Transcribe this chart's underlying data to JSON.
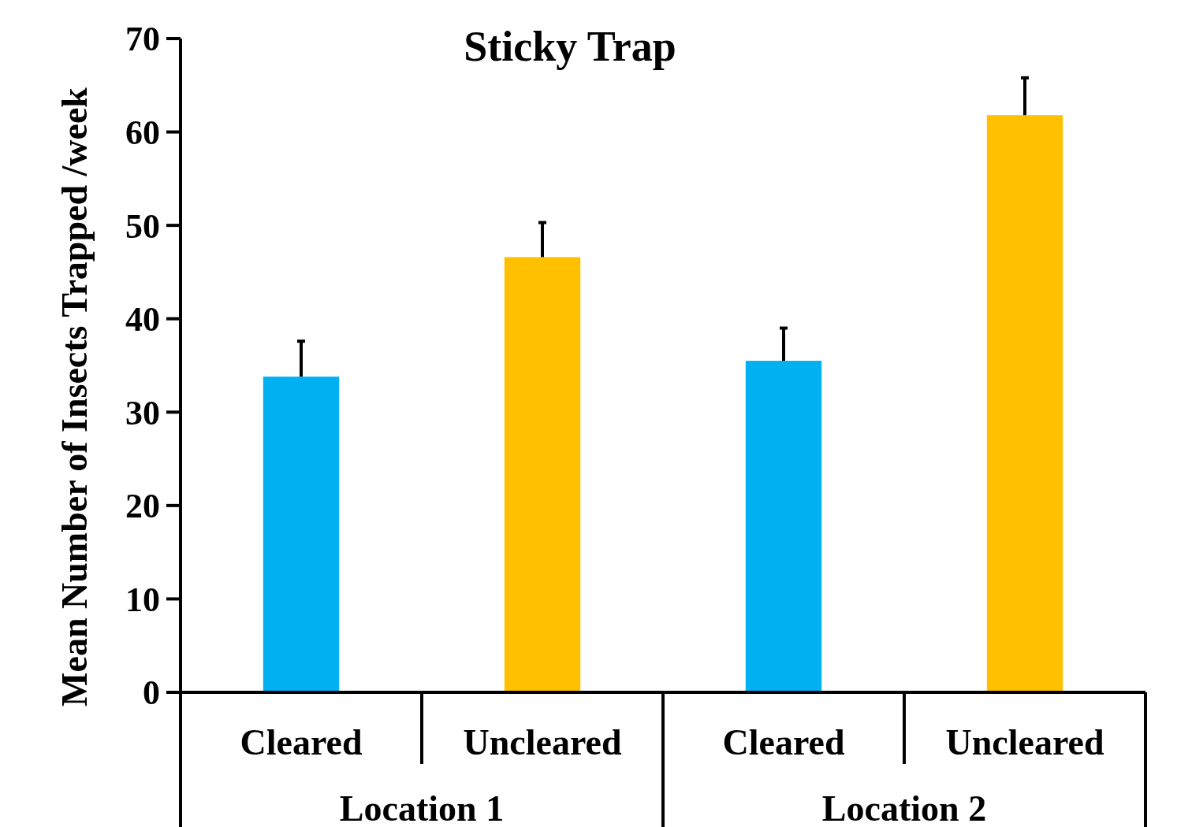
{
  "chart_data": {
    "type": "bar",
    "title": "Sticky Trap",
    "ylabel": "Mean Number of Insects Trapped /week",
    "categories": [
      "Cleared",
      "Uncleared",
      "Cleared",
      "Uncleared"
    ],
    "values": [
      33.8,
      46.6,
      35.5,
      61.8
    ],
    "colors": [
      "#00b0f0",
      "#ffc000",
      "#00b0f0",
      "#ffc000"
    ],
    "errors": [
      [
        33.8,
        37.6
      ],
      [
        46.6,
        50.3
      ],
      [
        35.5,
        39.0
      ],
      [
        61.8,
        65.8
      ]
    ],
    "annotations": [
      "Location 1",
      "Location 2"
    ],
    "ylim": [
      0,
      70
    ],
    "yticks": [
      0,
      10,
      20,
      30,
      40,
      50,
      60,
      70
    ],
    "grid": false
  }
}
